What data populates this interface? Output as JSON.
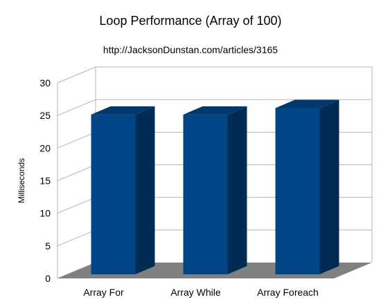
{
  "chart_data": {
    "type": "bar",
    "title": "Loop Performance (Array of 100)",
    "subtitle": "http://JacksonDunstan.com/articles/3165",
    "ylabel": "Milliseconds",
    "xlabel": "",
    "categories": [
      "Array For",
      "Array While",
      "Array Foreach"
    ],
    "values": [
      24.5,
      24.5,
      25.5
    ],
    "ylim": [
      0,
      30
    ],
    "yticks": [
      0,
      5,
      10,
      15,
      20,
      25,
      30
    ],
    "grid": true,
    "legend": "none",
    "colors": {
      "bar_front": "#004586",
      "bar_side": "#002b53",
      "bar_top": "#00386d",
      "floor": "#808080",
      "grid": "#b3b3b3"
    }
  }
}
